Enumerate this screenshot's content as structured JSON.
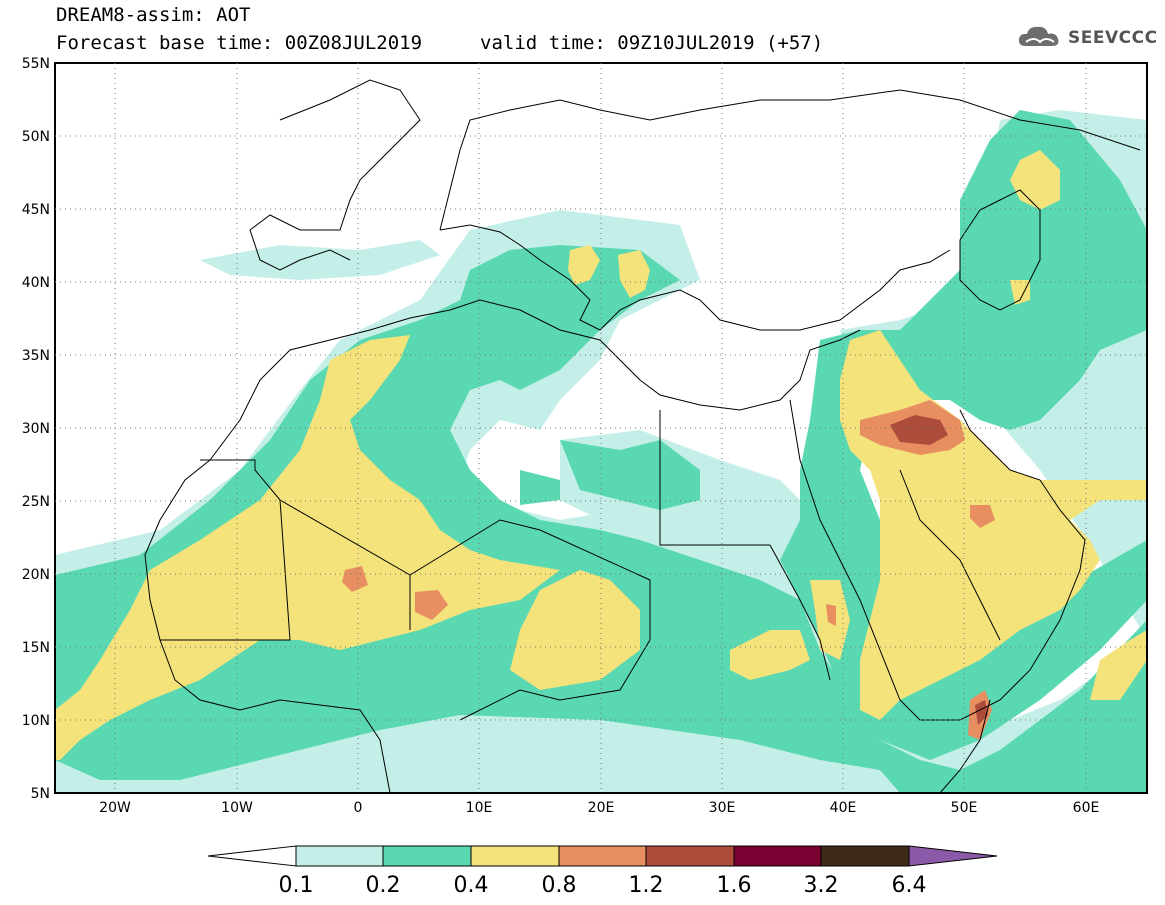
{
  "header": {
    "title_line1": "DREAM8-assim: AOT",
    "title_line2": "Forecast base time: 00Z08JUL2019",
    "valid_time": "valid time: 09Z10JUL2019 (+57)",
    "logo_text": "SEEVCCC",
    "logo_icon": "cloud-icon"
  },
  "map": {
    "lat_labels": [
      "55N",
      "50N",
      "45N",
      "40N",
      "35N",
      "30N",
      "25N",
      "20N",
      "15N",
      "10N",
      "5N"
    ],
    "lon_labels": [
      "20W",
      "10W",
      "0",
      "10E",
      "20E",
      "30E",
      "40E",
      "50E",
      "60E"
    ],
    "extent": {
      "lon_min": -25,
      "lon_max": 65,
      "lat_min": 5,
      "lat_max": 55
    }
  },
  "colorbar": {
    "labels": [
      "0.1",
      "0.2",
      "0.4",
      "0.8",
      "1.2",
      "1.6",
      "3.2",
      "6.4"
    ],
    "colors": [
      "#ffffff",
      "#c4efe9",
      "#5ad8b2",
      "#f4e27b",
      "#e88f62",
      "#ad4c3b",
      "#7a0032",
      "#3f2a1a",
      "#8a5aa8"
    ]
  },
  "colors": {
    "very_light": "#c4efe9",
    "light_green": "#5ad8b2",
    "yellow": "#f4e27b",
    "orange": "#e88f62",
    "red_brown": "#ad4c3b",
    "dark": "#7a0032"
  }
}
